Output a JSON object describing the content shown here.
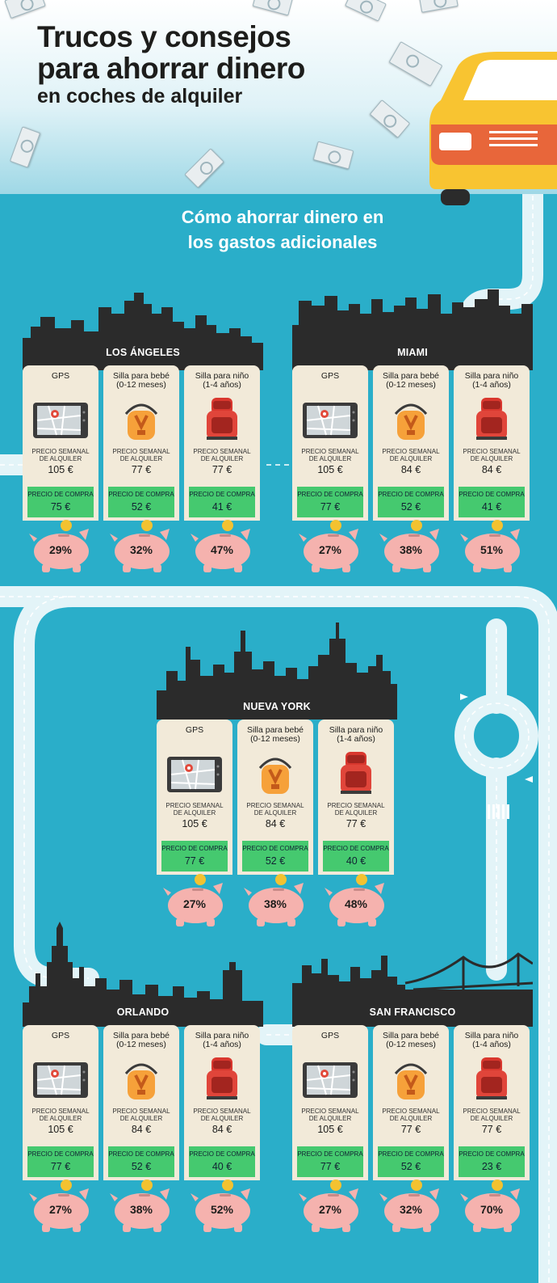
{
  "title": {
    "line1": "Trucos y consejos",
    "line2": "para ahorrar dinero",
    "line3": "en coches de alquiler"
  },
  "subtitle": {
    "line1": "Cómo ahorrar dinero en",
    "line2": "los gastos adicionales"
  },
  "labels": {
    "gps": "GPS",
    "baby_seat": "Silla para bebé\n(0-12 meses)",
    "child_seat": "Silla para niño\n(1-4 años)",
    "rent": "PRECIO SEMANAL\nDE ALQUILER",
    "buy": "PRECIO DE COMPRA"
  },
  "colors": {
    "background": "#2aaec9",
    "skyline": "#2b2b2b",
    "card": "#f2ead9",
    "buy_box": "#45c96f",
    "piggy": "#f5b2ae",
    "coin": "#f3c230"
  },
  "icons": [
    "gps-icon",
    "baby-seat-icon",
    "child-seat-icon",
    "piggy-bank-icon",
    "coin-icon",
    "money-bill-icon",
    "car-icon"
  ],
  "cities": [
    {
      "name": "LOS ÁNGELES",
      "items": [
        {
          "rent": "105 €",
          "buy": "75 €",
          "pct": "29%"
        },
        {
          "rent": "77 €",
          "buy": "52 €",
          "pct": "32%"
        },
        {
          "rent": "77 €",
          "buy": "41 €",
          "pct": "47%"
        }
      ]
    },
    {
      "name": "MIAMI",
      "items": [
        {
          "rent": "105 €",
          "buy": "77 €",
          "pct": "27%"
        },
        {
          "rent": "84 €",
          "buy": "52 €",
          "pct": "38%"
        },
        {
          "rent": "84 €",
          "buy": "41 €",
          "pct": "51%"
        }
      ]
    },
    {
      "name": "NUEVA YORK",
      "items": [
        {
          "rent": "105 €",
          "buy": "77 €",
          "pct": "27%"
        },
        {
          "rent": "84 €",
          "buy": "52 €",
          "pct": "38%"
        },
        {
          "rent": "77 €",
          "buy": "40 €",
          "pct": "48%"
        }
      ]
    },
    {
      "name": "ORLANDO",
      "items": [
        {
          "rent": "105 €",
          "buy": "77 €",
          "pct": "27%"
        },
        {
          "rent": "84 €",
          "buy": "52 €",
          "pct": "38%"
        },
        {
          "rent": "84 €",
          "buy": "40 €",
          "pct": "52%"
        }
      ]
    },
    {
      "name": "SAN FRANCISCO",
      "items": [
        {
          "rent": "105 €",
          "buy": "77 €",
          "pct": "27%"
        },
        {
          "rent": "77 €",
          "buy": "52 €",
          "pct": "32%"
        },
        {
          "rent": "77 €",
          "buy": "23 €",
          "pct": "70%"
        }
      ]
    }
  ]
}
